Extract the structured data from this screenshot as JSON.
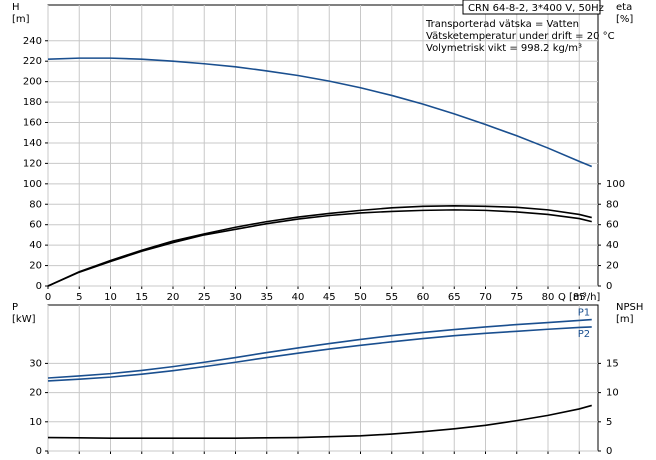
{
  "chart_data": [
    {
      "type": "line",
      "header": "CRN 64-8-2, 3*400 V, 50Hz",
      "annotations": [
        "Transporterad vätska = Vatten",
        "Vätsketemperatur under drift = 20 °C",
        "Volymetrisk vikt = 998.2 kg/m³"
      ],
      "ylabel": "H",
      "yunit": "[m]",
      "y2label": "eta",
      "y2unit": "[%]",
      "xlabel": "Q [m³/h]",
      "x": [
        0,
        5,
        10,
        15,
        20,
        25,
        30,
        35,
        40,
        45,
        50,
        55,
        60,
        65,
        70,
        75,
        80,
        85,
        87
      ],
      "xlim": [
        0,
        88
      ],
      "xticks": [
        0,
        5,
        10,
        15,
        20,
        25,
        30,
        35,
        40,
        45,
        50,
        55,
        60,
        65,
        70,
        75,
        80,
        85
      ],
      "ylim": [
        0,
        275
      ],
      "yticks": [
        0,
        20,
        40,
        60,
        80,
        100,
        120,
        140,
        160,
        180,
        200,
        220,
        240
      ],
      "y2lim": [
        0,
        275
      ],
      "y2ticks": [
        0,
        20,
        40,
        60,
        80,
        100
      ],
      "grid": true,
      "series": [
        {
          "color": "#1a4f8f",
          "values": [
            222,
            223,
            223,
            222,
            220,
            217.5,
            214.5,
            210.5,
            206,
            200.5,
            194,
            186.5,
            178,
            168.5,
            158,
            147,
            135,
            122,
            117
          ]
        },
        {
          "color": "#000000",
          "axis": "y2",
          "values": [
            0,
            14,
            25,
            35,
            44,
            51,
            57.5,
            63,
            67.5,
            71,
            74,
            76.5,
            78,
            78.5,
            78,
            77,
            74.5,
            70,
            67
          ]
        },
        {
          "color": "#000000",
          "axis": "y2",
          "values": [
            0,
            13.5,
            24,
            34,
            42.5,
            50,
            55.5,
            61,
            65.5,
            69,
            71.5,
            73,
            74,
            74.5,
            74,
            72.5,
            70,
            66,
            63
          ]
        }
      ]
    },
    {
      "type": "line",
      "ylabel": "P",
      "yunit": "[kW]",
      "y2label": "NPSH",
      "y2unit": "[m]",
      "x": [
        0,
        5,
        10,
        15,
        20,
        25,
        30,
        35,
        40,
        45,
        50,
        55,
        60,
        65,
        70,
        75,
        80,
        85,
        87
      ],
      "xlim": [
        0,
        88
      ],
      "ylim": [
        0,
        50
      ],
      "yticks": [
        0,
        10,
        20,
        30
      ],
      "y2lim": [
        0,
        25
      ],
      "y2ticks": [
        0,
        5,
        10,
        15
      ],
      "grid": true,
      "series": [
        {
          "name": "P1",
          "color": "#1a4f8f",
          "values": [
            25,
            25.7,
            26.5,
            27.6,
            28.9,
            30.4,
            32,
            33.7,
            35.3,
            36.8,
            38.2,
            39.5,
            40.6,
            41.6,
            42.5,
            43.3,
            44,
            44.7,
            45
          ]
        },
        {
          "name": "P2",
          "color": "#1a4f8f",
          "values": [
            24,
            24.6,
            25.3,
            26.3,
            27.5,
            28.9,
            30.4,
            32,
            33.5,
            34.9,
            36.2,
            37.4,
            38.5,
            39.5,
            40.3,
            41,
            41.7,
            42.3,
            42.5
          ]
        },
        {
          "color": "#000000",
          "axis": "y2",
          "values": [
            2.3,
            2.25,
            2.2,
            2.2,
            2.2,
            2.2,
            2.2,
            2.25,
            2.3,
            2.45,
            2.6,
            2.9,
            3.3,
            3.8,
            4.4,
            5.2,
            6.1,
            7.2,
            7.8
          ]
        }
      ]
    }
  ]
}
